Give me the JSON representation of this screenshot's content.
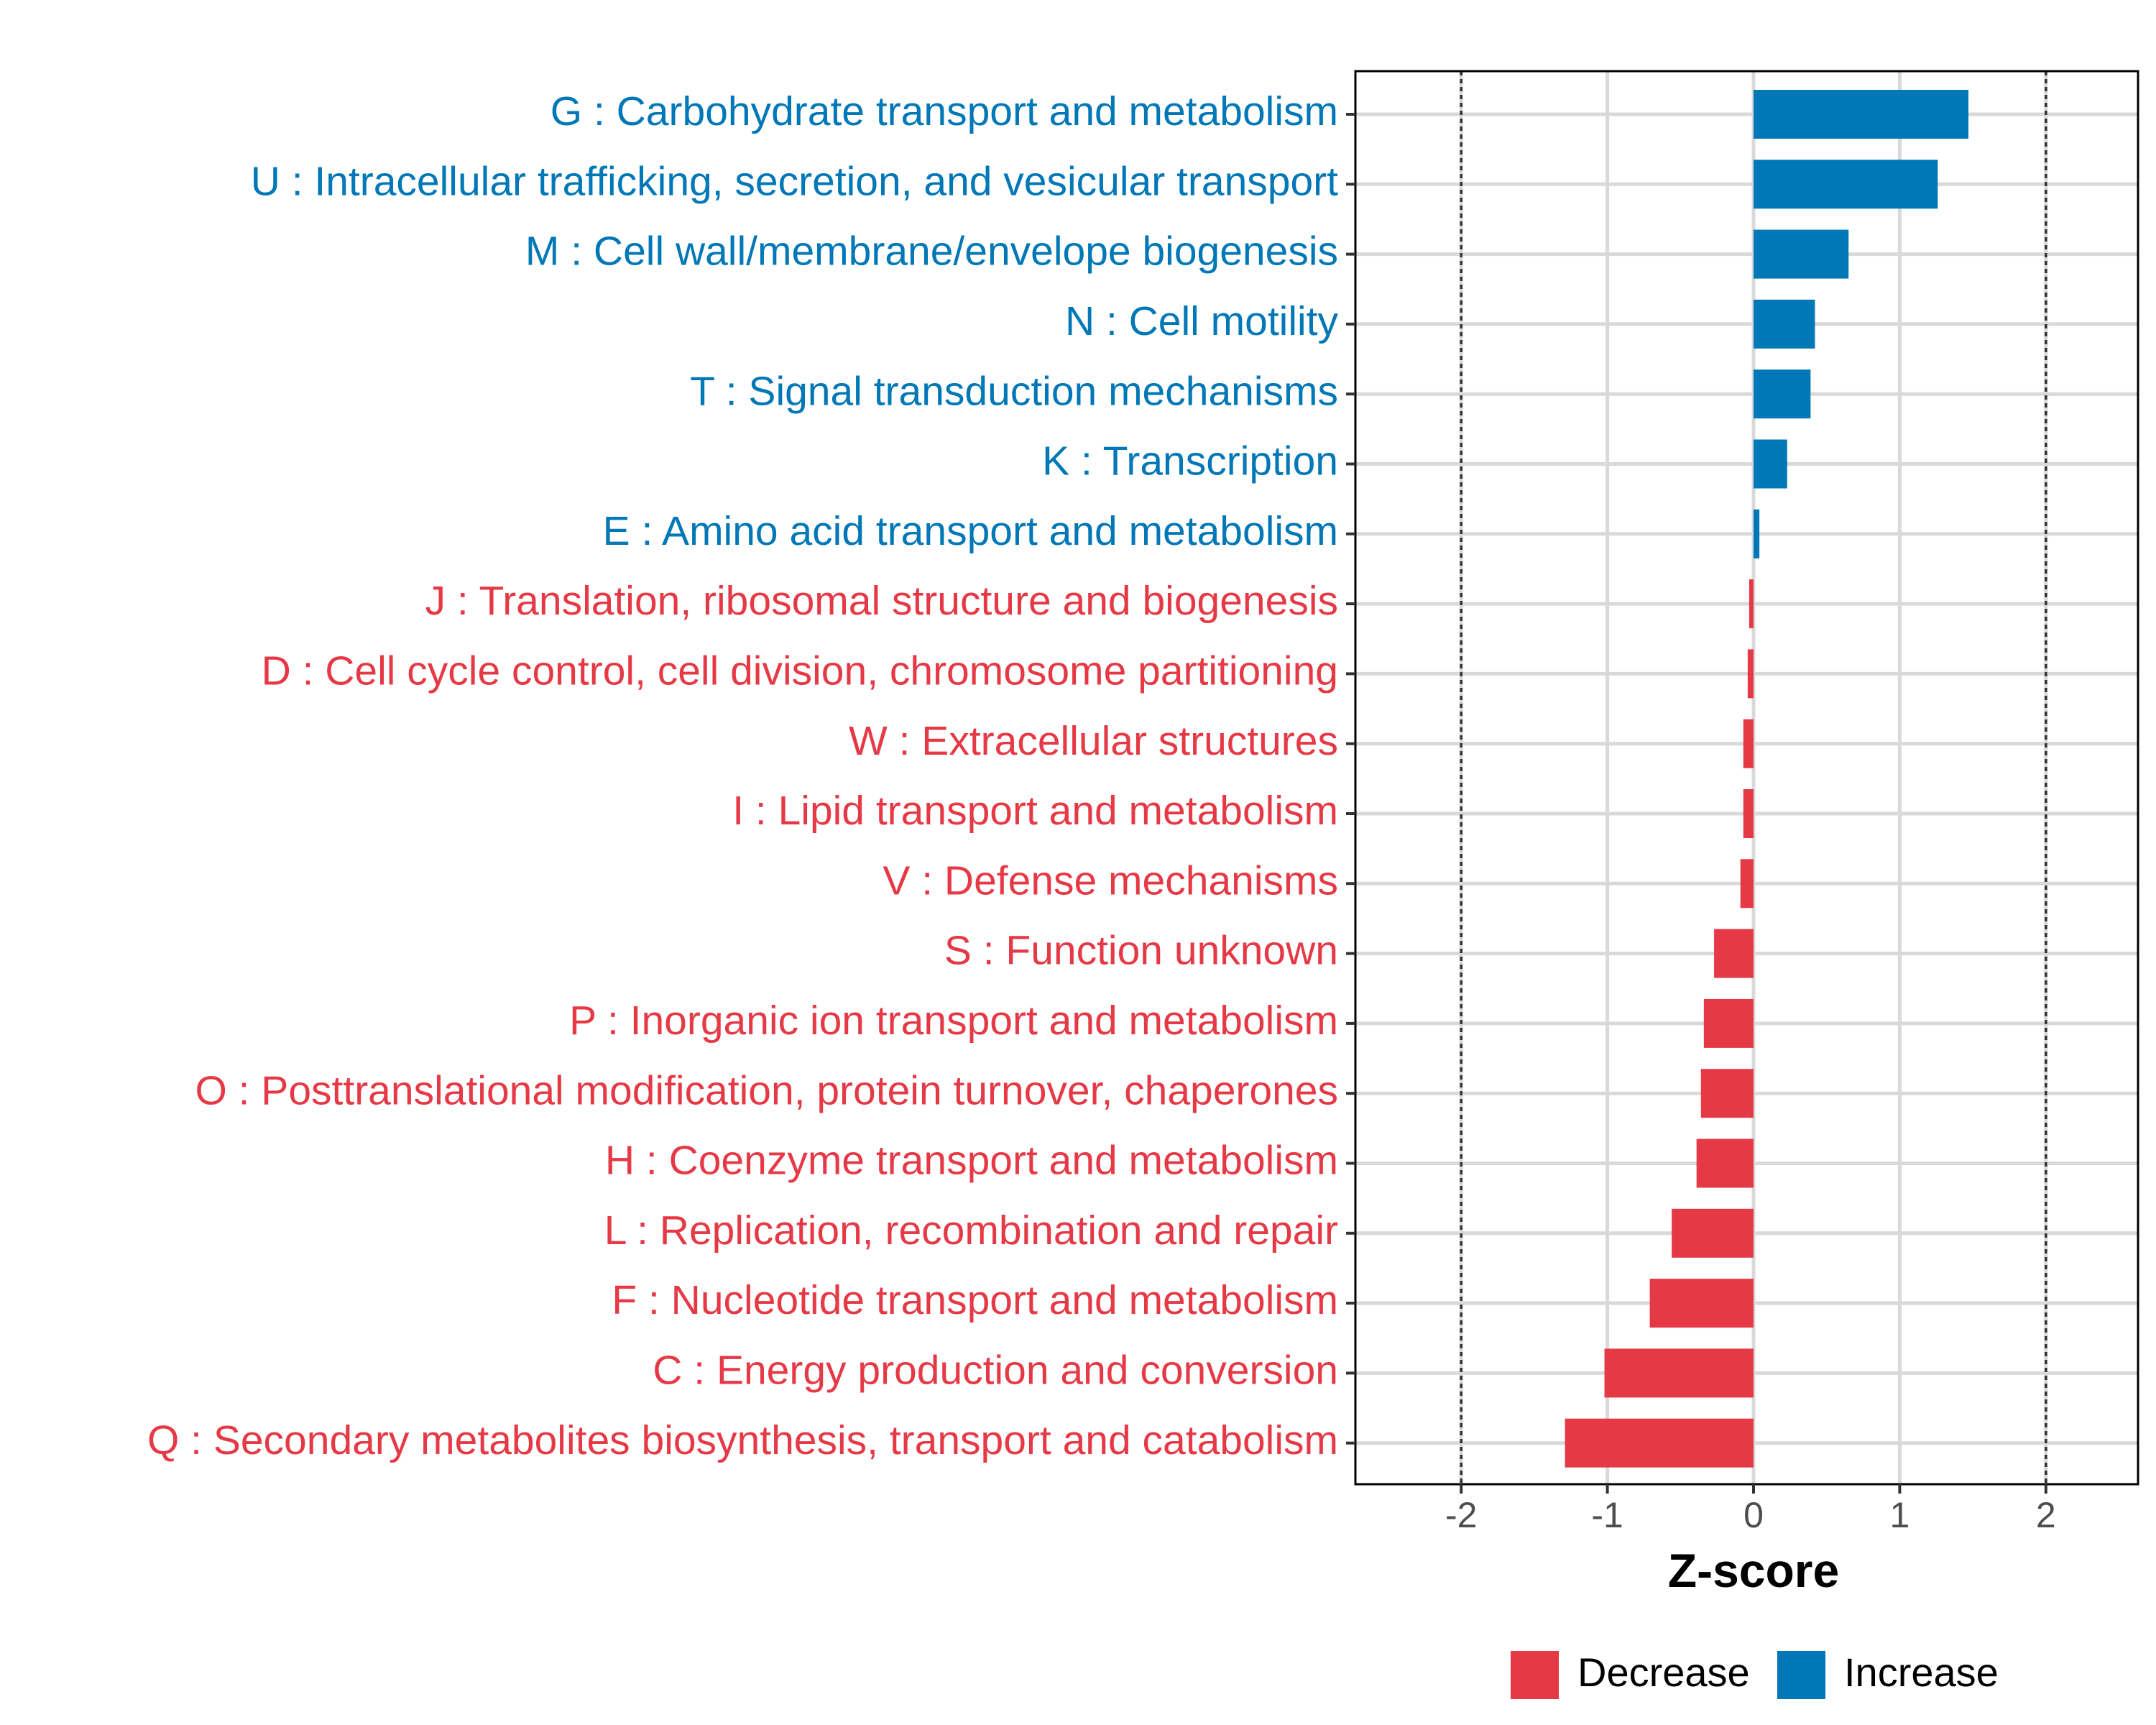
{
  "chart_data": {
    "type": "bar",
    "orientation": "horizontal",
    "title": "",
    "xlabel": "Z-score",
    "ylabel": "",
    "xlim": [
      -2.7,
      2.65
    ],
    "xticks": [
      -2,
      -1,
      0,
      1,
      2
    ],
    "xtick_labels": [
      "-2",
      "-1",
      "0",
      "1",
      "2"
    ],
    "reference_lines": [
      -2,
      2
    ],
    "grid": true,
    "categories": [
      "G : Carbohydrate transport and metabolism",
      "U : Intracellular trafficking, secretion, and vesicular transport",
      "M : Cell wall/membrane/envelope biogenesis",
      "N : Cell motility",
      "T : Signal transduction mechanisms",
      "K : Transcription",
      "E : Amino acid transport and metabolism",
      "J : Translation, ribosomal structure and biogenesis",
      "D : Cell cycle control, cell division, chromosome partitioning",
      "W : Extracellular structures",
      "I : Lipid transport and metabolism",
      "V : Defense mechanisms",
      "S : Function unknown",
      "P : Inorganic ion transport and metabolism",
      "O : Posttranslational modification, protein turnover, chaperones",
      "H : Coenzyme transport and metabolism",
      "L : Replication, recombination and repair",
      "F : Nucleotide transport and metabolism",
      "C : Energy production and conversion",
      "Q : Secondary metabolites biosynthesis, transport and catabolism"
    ],
    "values": [
      1.47,
      1.26,
      0.65,
      0.42,
      0.39,
      0.23,
      0.04,
      -0.03,
      -0.04,
      -0.07,
      -0.07,
      -0.09,
      -0.27,
      -0.34,
      -0.36,
      -0.39,
      -0.56,
      -0.71,
      -1.02,
      -1.29
    ],
    "groups": [
      "Increase",
      "Increase",
      "Increase",
      "Increase",
      "Increase",
      "Increase",
      "Increase",
      "Decrease",
      "Decrease",
      "Decrease",
      "Decrease",
      "Decrease",
      "Decrease",
      "Decrease",
      "Decrease",
      "Decrease",
      "Decrease",
      "Decrease",
      "Decrease",
      "Decrease"
    ],
    "legend": {
      "position": "bottom",
      "entries": [
        {
          "label": "Decrease",
          "color": "#E63946"
        },
        {
          "label": "Increase",
          "color": "#0077B6"
        }
      ]
    },
    "colors": {
      "Increase": "#0077B6",
      "Decrease": "#E63946"
    }
  }
}
